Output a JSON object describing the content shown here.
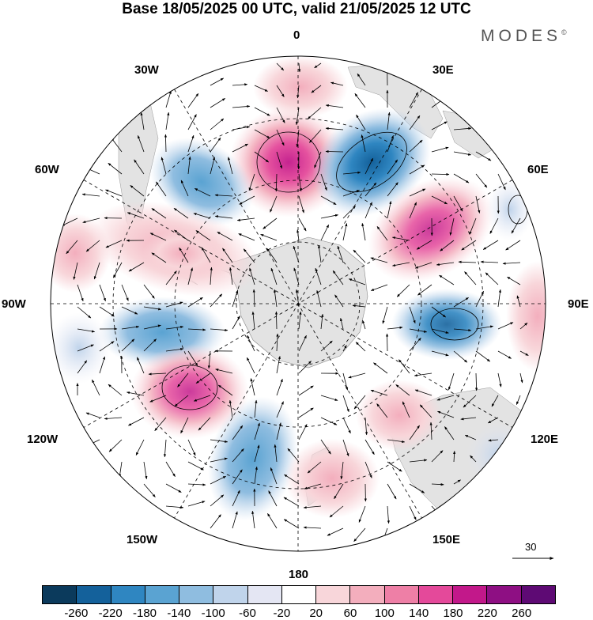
{
  "title": "Base 18/05/2025 00 UTC, valid 21/05/2025 12 UTC",
  "brand": "MODES",
  "brand_mark": "©",
  "longitude_labels": {
    "top": "0",
    "e30": "30E",
    "e60": "60E",
    "e90": "90E",
    "e120": "120E",
    "e150": "150E",
    "bottom": "180",
    "w150": "150W",
    "w120": "120W",
    "w90": "90W",
    "w60": "60W",
    "w30": "30W"
  },
  "reference_vector": "30",
  "colorbar": {
    "colors": [
      "#0b3a5c",
      "#14619b",
      "#2f86c1",
      "#5aa3d2",
      "#8fbde0",
      "#c0d4eb",
      "#e4e6f3",
      "#ffffff",
      "#f8d6da",
      "#f3aebd",
      "#ee7fa6",
      "#e4499a",
      "#c2188a",
      "#8e0f83",
      "#5e0a74"
    ],
    "tick_labels": [
      "-260",
      "-220",
      "-180",
      "-140",
      "-100",
      "-60",
      "-20",
      "20",
      "60",
      "100",
      "140",
      "180",
      "220",
      "260"
    ]
  },
  "map_data": {
    "projection": "south-polar-stereographic",
    "field": "anomaly shading with wind vectors",
    "features": [
      {
        "sign": "positive",
        "lon_deg": -5,
        "strength": 220
      },
      {
        "sign": "negative",
        "lon_deg": 35,
        "strength": -220
      },
      {
        "sign": "positive",
        "lon_deg": 65,
        "strength": 180
      },
      {
        "sign": "negative",
        "lon_deg": 100,
        "strength": -180
      },
      {
        "sign": "negative",
        "lon_deg": -35,
        "strength": -140
      },
      {
        "sign": "positive",
        "lon_deg": -65,
        "strength": 100
      },
      {
        "sign": "negative",
        "lon_deg": -95,
        "strength": -140
      },
      {
        "sign": "positive",
        "lon_deg": -125,
        "strength": 200
      },
      {
        "sign": "negative",
        "lon_deg": -160,
        "strength": -120
      },
      {
        "sign": "positive",
        "lon_deg": 160,
        "strength": 60
      },
      {
        "sign": "positive",
        "lon_deg": 135,
        "strength": 60
      }
    ]
  }
}
